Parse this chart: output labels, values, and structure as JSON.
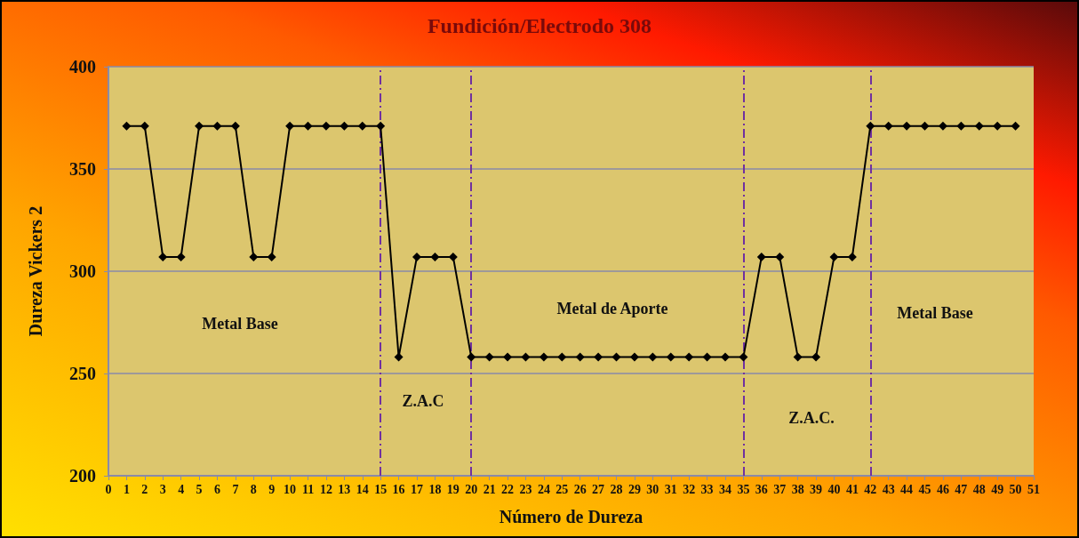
{
  "chart_data": {
    "type": "line",
    "title": "Fundición/Electrodo 308",
    "xlabel": "Número de Dureza",
    "ylabel": "Dureza Vickers 2",
    "x": [
      1,
      2,
      3,
      4,
      5,
      6,
      7,
      8,
      9,
      10,
      11,
      12,
      13,
      14,
      15,
      16,
      17,
      18,
      19,
      20,
      21,
      22,
      23,
      24,
      25,
      26,
      27,
      28,
      29,
      30,
      31,
      32,
      33,
      34,
      35,
      36,
      37,
      38,
      39,
      40,
      41,
      42,
      43,
      44,
      45,
      46,
      47,
      48,
      49,
      50
    ],
    "series": [
      {
        "color": "#000000",
        "values": [
          371,
          371,
          307,
          307,
          371,
          371,
          371,
          307,
          307,
          371,
          371,
          371,
          371,
          371,
          371,
          258,
          307,
          307,
          307,
          258,
          258,
          258,
          258,
          258,
          258,
          258,
          258,
          258,
          258,
          258,
          258,
          258,
          258,
          258,
          258,
          307,
          307,
          258,
          258,
          307,
          307,
          371,
          371,
          371,
          371,
          371,
          371,
          371,
          371,
          371
        ]
      }
    ],
    "xlim": [
      0,
      51
    ],
    "xticks": [
      0,
      1,
      2,
      3,
      4,
      5,
      6,
      7,
      8,
      9,
      10,
      11,
      12,
      13,
      14,
      15,
      16,
      17,
      18,
      19,
      20,
      21,
      22,
      23,
      24,
      25,
      26,
      27,
      28,
      29,
      30,
      31,
      32,
      33,
      34,
      35,
      36,
      37,
      38,
      39,
      40,
      41,
      42,
      43,
      44,
      45,
      46,
      47,
      48,
      49,
      50,
      51
    ],
    "ylim": [
      200,
      400
    ],
    "yticks": [
      200,
      250,
      300,
      350,
      400
    ],
    "grid": "y",
    "marker": "diamond",
    "line_style": "solid",
    "ref_lines": [
      {
        "axis": "x",
        "value": 15,
        "color": "#7030a0",
        "line_style": "dashed"
      },
      {
        "axis": "x",
        "value": 20,
        "color": "#7030a0",
        "line_style": "dashed"
      },
      {
        "axis": "x",
        "value": 35,
        "color": "#7030a0",
        "line_style": "dashed"
      },
      {
        "axis": "x",
        "value": 42,
        "color": "#7030a0",
        "line_style": "dashed"
      }
    ],
    "annotations": [
      "Metal Base",
      "Z.A.C",
      "Metal de Aporte",
      "Z.A.C.",
      "Metal Base"
    ]
  }
}
